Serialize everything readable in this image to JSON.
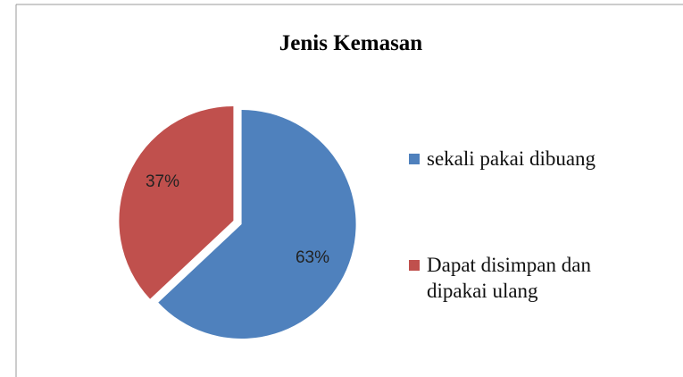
{
  "chart_data": {
    "type": "pie",
    "title": "Jenis Kemasan",
    "categories": [
      "sekali pakai dibuang",
      "Dapat disimpan dan dipakai ulang"
    ],
    "values": [
      63,
      37
    ],
    "value_labels": [
      "63%",
      "37%"
    ],
    "colors": [
      "#4f81bd",
      "#c0504d"
    ],
    "legend": "right"
  }
}
